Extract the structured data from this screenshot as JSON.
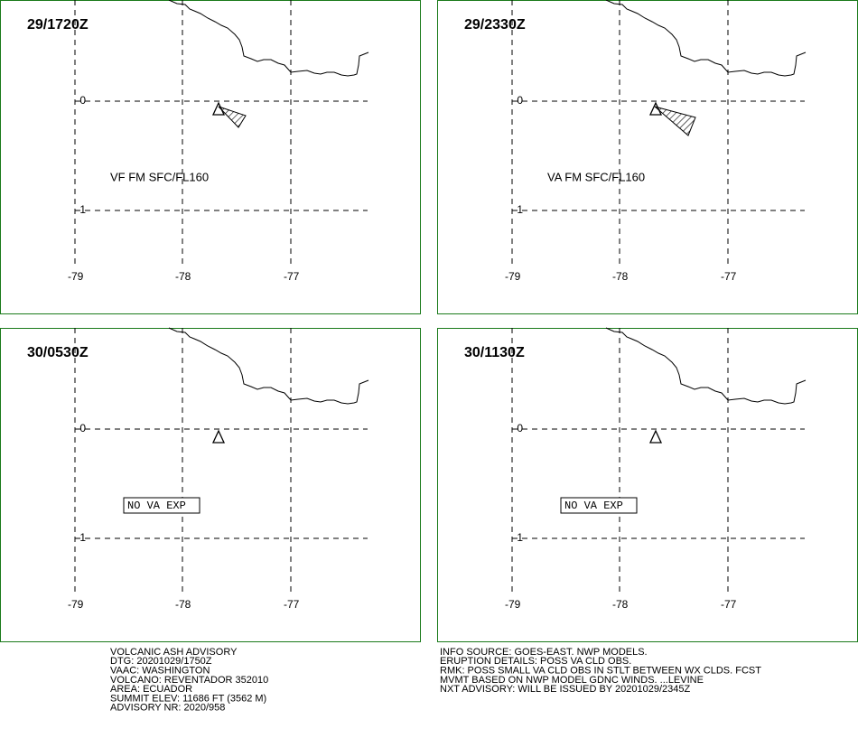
{
  "panels": [
    {
      "time": "29/1720Z",
      "label": "VF FM SFC/FL160"
    },
    {
      "time": "29/2330Z",
      "label": "VA FM SFC/FL160"
    },
    {
      "time": "30/0530Z",
      "label": "NO VA EXP"
    },
    {
      "time": "30/1130Z",
      "label": "NO VA EXP"
    }
  ],
  "lat_labels": [
    0,
    -1
  ],
  "lon_labels": [
    -79,
    -78,
    -77
  ],
  "advisory_left": [
    "VOLCANIC ASH ADVISORY",
    "DTG: 20201029/1750Z",
    "VAAC: WASHINGTON",
    "VOLCANO: REVENTADOR 352010",
    "AREA: ECUADOR",
    "SUMMIT ELEV: 11686 FT (3562 M)",
    "ADVISORY NR: 2020/958"
  ],
  "advisory_right": [
    "INFO SOURCE: GOES-EAST. NWP MODELS.",
    "ERUPTION DETAILS: POSS VA CLD OBS.",
    "RMK: POSS SMALL VA CLD OBS IN STLT BETWEEN WX CLDS. FCST",
    "MVMT BASED ON NWP MODEL GDNC WINDS. ...LEVINE",
    "NXT ADVISORY: WILL BE ISSUED BY 20201029/2345Z"
  ]
}
